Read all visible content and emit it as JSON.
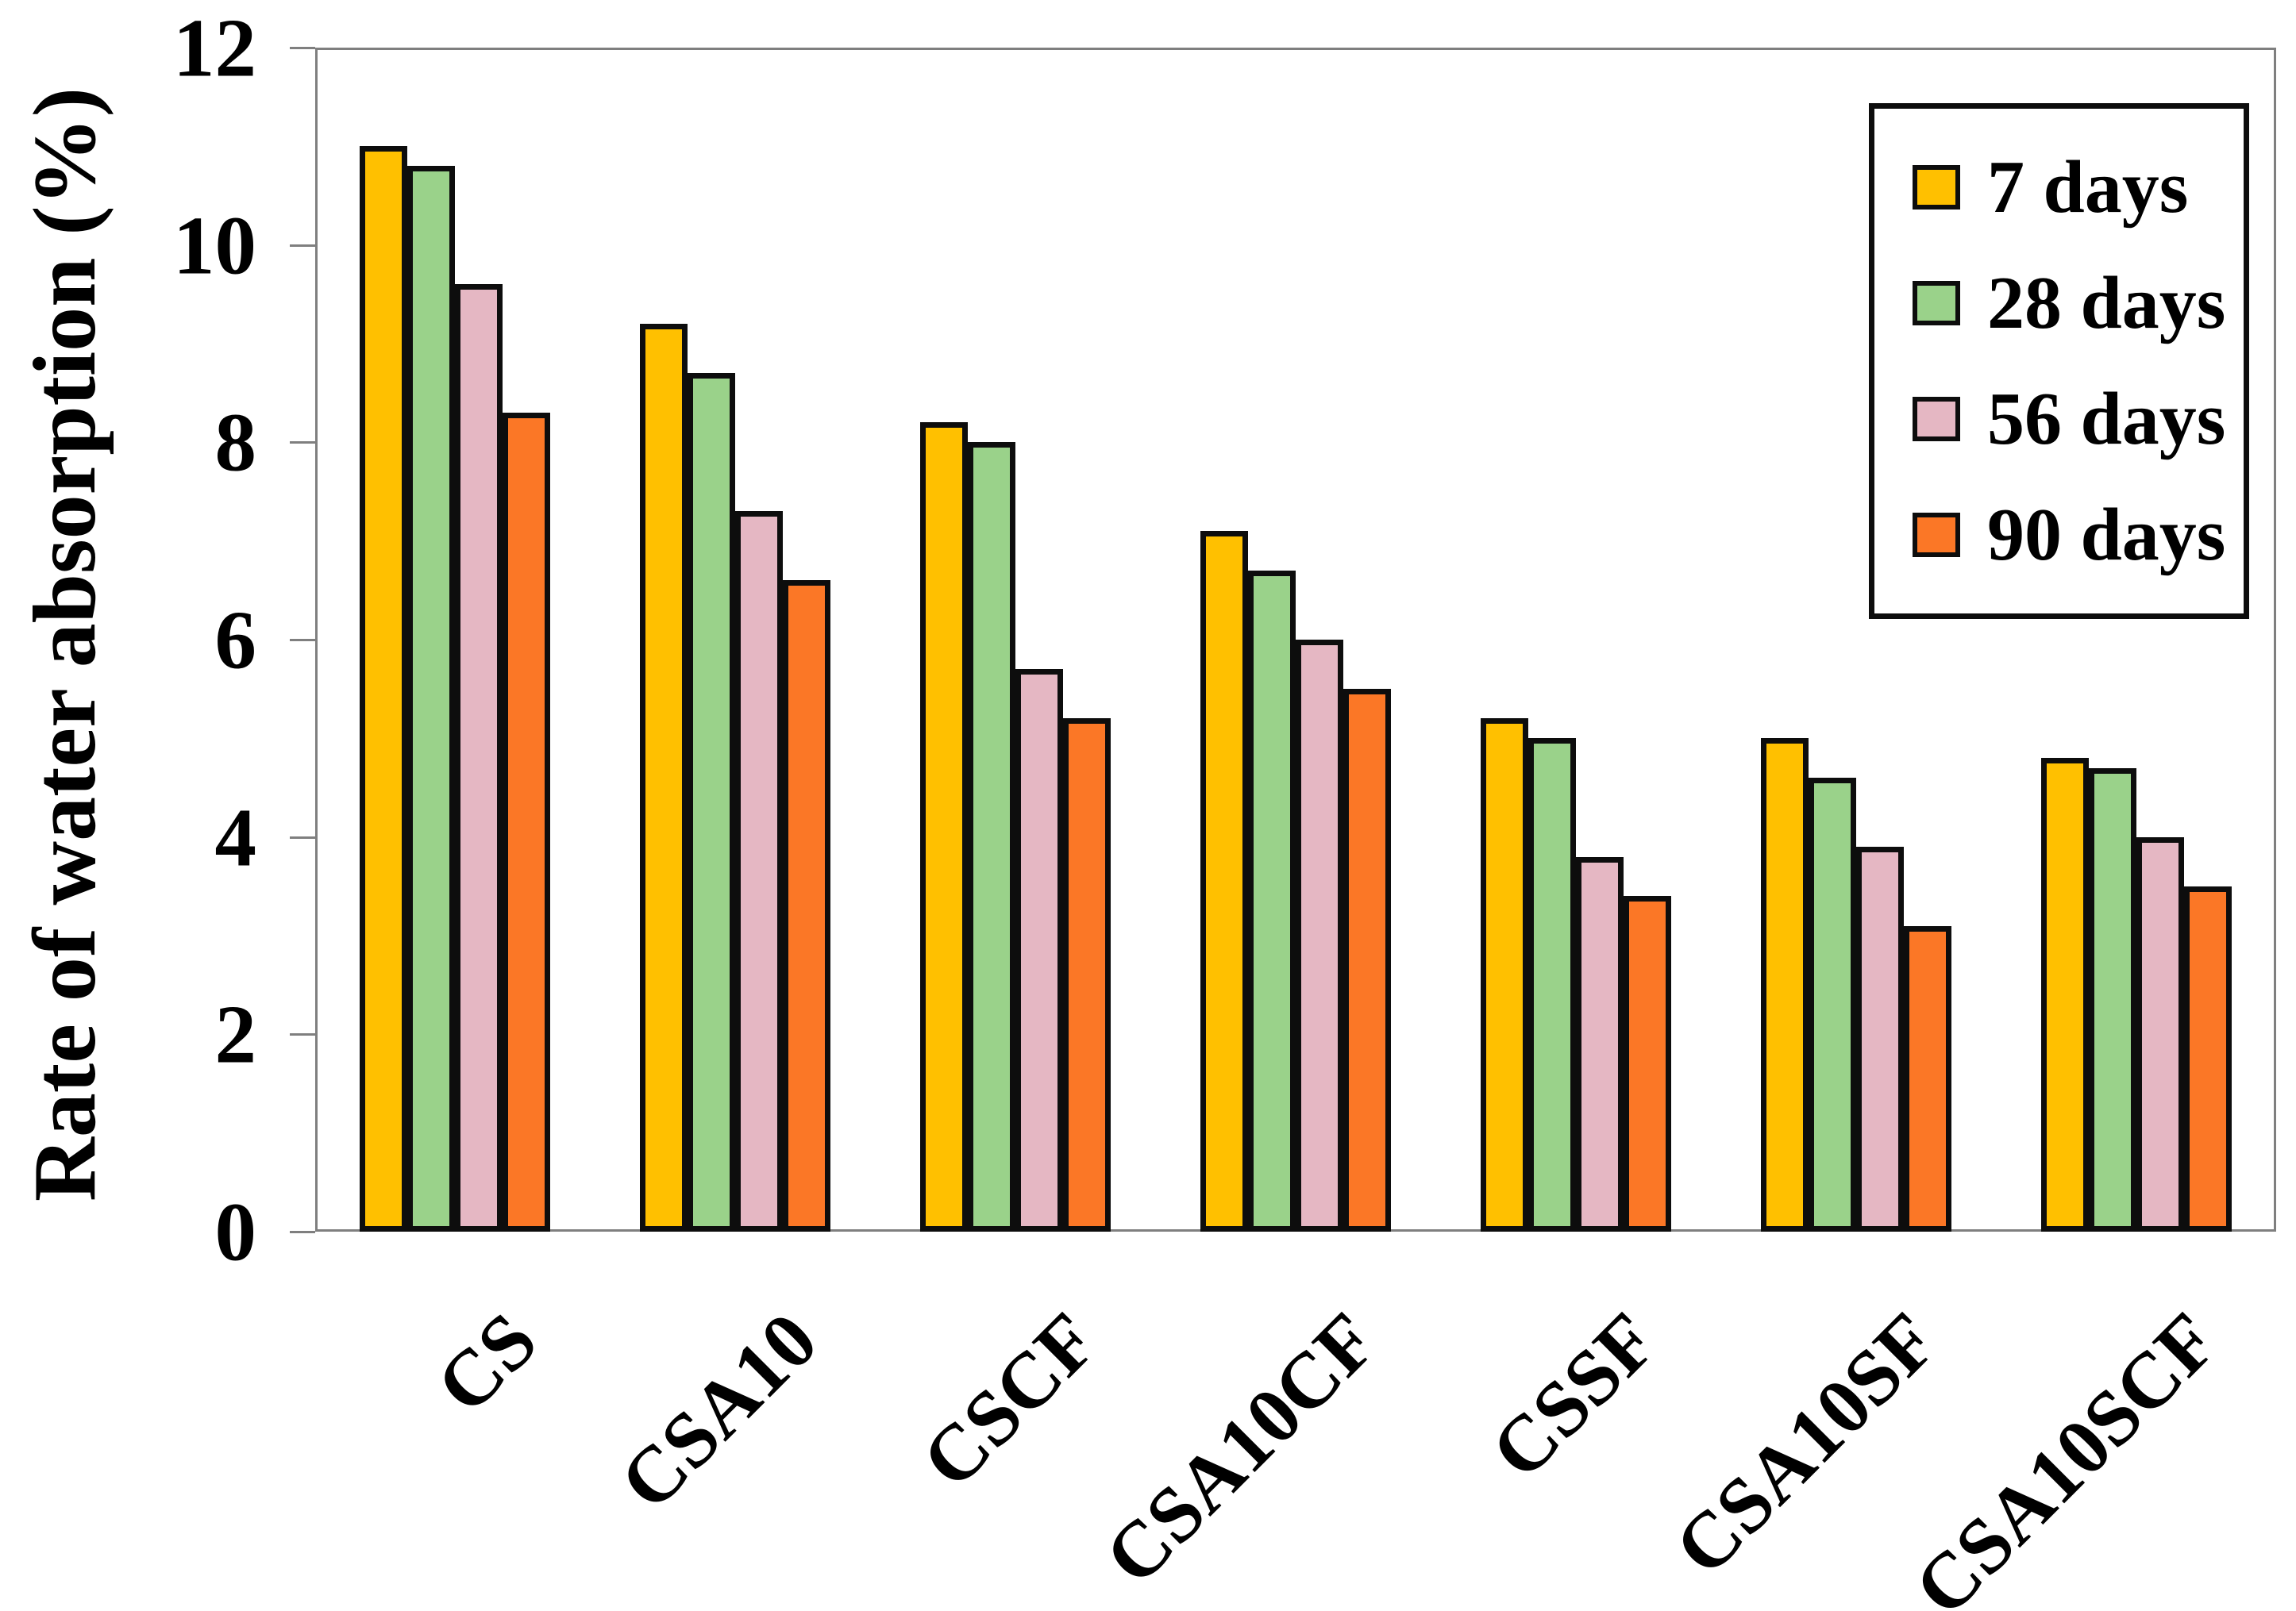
{
  "chart_data": {
    "type": "bar",
    "title": "",
    "xlabel": "",
    "ylabel": "Rate of water absorption (%)",
    "ylim": [
      0,
      12
    ],
    "yticks": [
      0,
      2,
      4,
      6,
      8,
      10,
      12
    ],
    "grid": false,
    "legend_position": "top-right",
    "categories": [
      "CS",
      "CSA10",
      "CSCF",
      "CSA10CF",
      "CSSF",
      "CSA10SF",
      "CSA10SCF"
    ],
    "series": [
      {
        "name": "7 days",
        "color": "#FFC000",
        "values": [
          11.0,
          9.2,
          8.2,
          7.1,
          5.2,
          5.0,
          4.8
        ]
      },
      {
        "name": "28 days",
        "color": "#9AD28A",
        "values": [
          10.8,
          8.7,
          8.0,
          6.7,
          5.0,
          4.6,
          4.7
        ]
      },
      {
        "name": "56 days",
        "color": "#E5B7C3",
        "values": [
          9.6,
          7.3,
          5.7,
          6.0,
          3.8,
          3.9,
          4.0
        ]
      },
      {
        "name": "90 days",
        "color": "#FB7726",
        "values": [
          8.3,
          6.6,
          5.2,
          5.5,
          3.4,
          3.1,
          3.5
        ]
      }
    ],
    "colors": {
      "bar_border": "#0d0d0d",
      "axis": "#7f7f7f",
      "text": "#000000",
      "background": "#ffffff"
    }
  }
}
